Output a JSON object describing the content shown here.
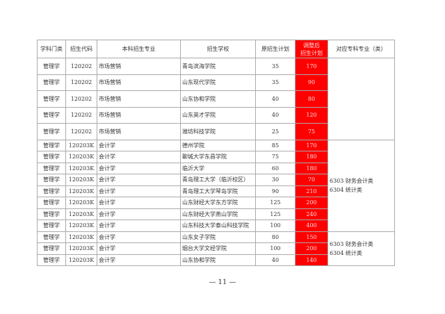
{
  "headers": [
    "学科门类",
    "招生代码",
    "本科招生专业",
    "招生学校",
    "原招生计划",
    "调整后\n招生计划",
    "对应专科专业（类）"
  ],
  "headers_adj": [
    "调整后",
    "招生计划"
  ],
  "rows": [
    [
      "管理学",
      "120202",
      "市场营销",
      "青岛滨海学院",
      "35",
      "170"
    ],
    [
      "管理学",
      "120202",
      "市场营销",
      "山东现代学院",
      "35",
      "90"
    ],
    [
      "管理学",
      "120202",
      "市场营销",
      "山东协和学院",
      "40",
      "80"
    ],
    [
      "管理学",
      "120202",
      "市场营销",
      "山东英才学院",
      "40",
      "120"
    ],
    [
      "管理学",
      "120202",
      "市场营销",
      "潍坊科技学院",
      "25",
      "75"
    ],
    [
      "管理学",
      "120203K",
      "会计学",
      "德州学院",
      "85",
      "170"
    ],
    [
      "管理学",
      "120203K",
      "会计学",
      "聊城大学东昌学院",
      "75",
      "180"
    ],
    [
      "管理学",
      "120203K",
      "会计学",
      "临沂大学",
      "60",
      "180"
    ],
    [
      "管理学",
      "120203K",
      "会计学",
      "青岛理工大学（临沂校区）",
      "30",
      "70"
    ],
    [
      "管理学",
      "120203K",
      "会计学",
      "青岛理工大学琴岛学院",
      "90",
      "210"
    ],
    [
      "管理学",
      "120203K",
      "会计学",
      "山东财经大学东方学院",
      "125",
      "200"
    ],
    [
      "管理学",
      "120203K",
      "会计学",
      "山东财经大学燕山学院",
      "125",
      "240"
    ],
    [
      "管理学",
      "120203K",
      "会计学",
      "山东科技大学泰山科技学院",
      "100",
      "400"
    ],
    [
      "管理学",
      "120203K",
      "会计学",
      "山东女子学院",
      "80",
      "150"
    ],
    [
      "管理学",
      "120203K",
      "会计学",
      "烟台大学文经学院",
      "100",
      "200"
    ],
    [
      "管理学",
      "120203K",
      "会计学",
      "山东协和学院",
      "40",
      "140"
    ]
  ],
  "merged": [
    {
      "line1": "",
      "line2": ""
    },
    {
      "line1": "6303 财务会计类",
      "line2": "6304 统计类"
    },
    {
      "line1": "6303 财务会计类",
      "line2": "6304 统计类"
    }
  ],
  "highlight_color": "#ff0000",
  "page_number": "— 11 —"
}
